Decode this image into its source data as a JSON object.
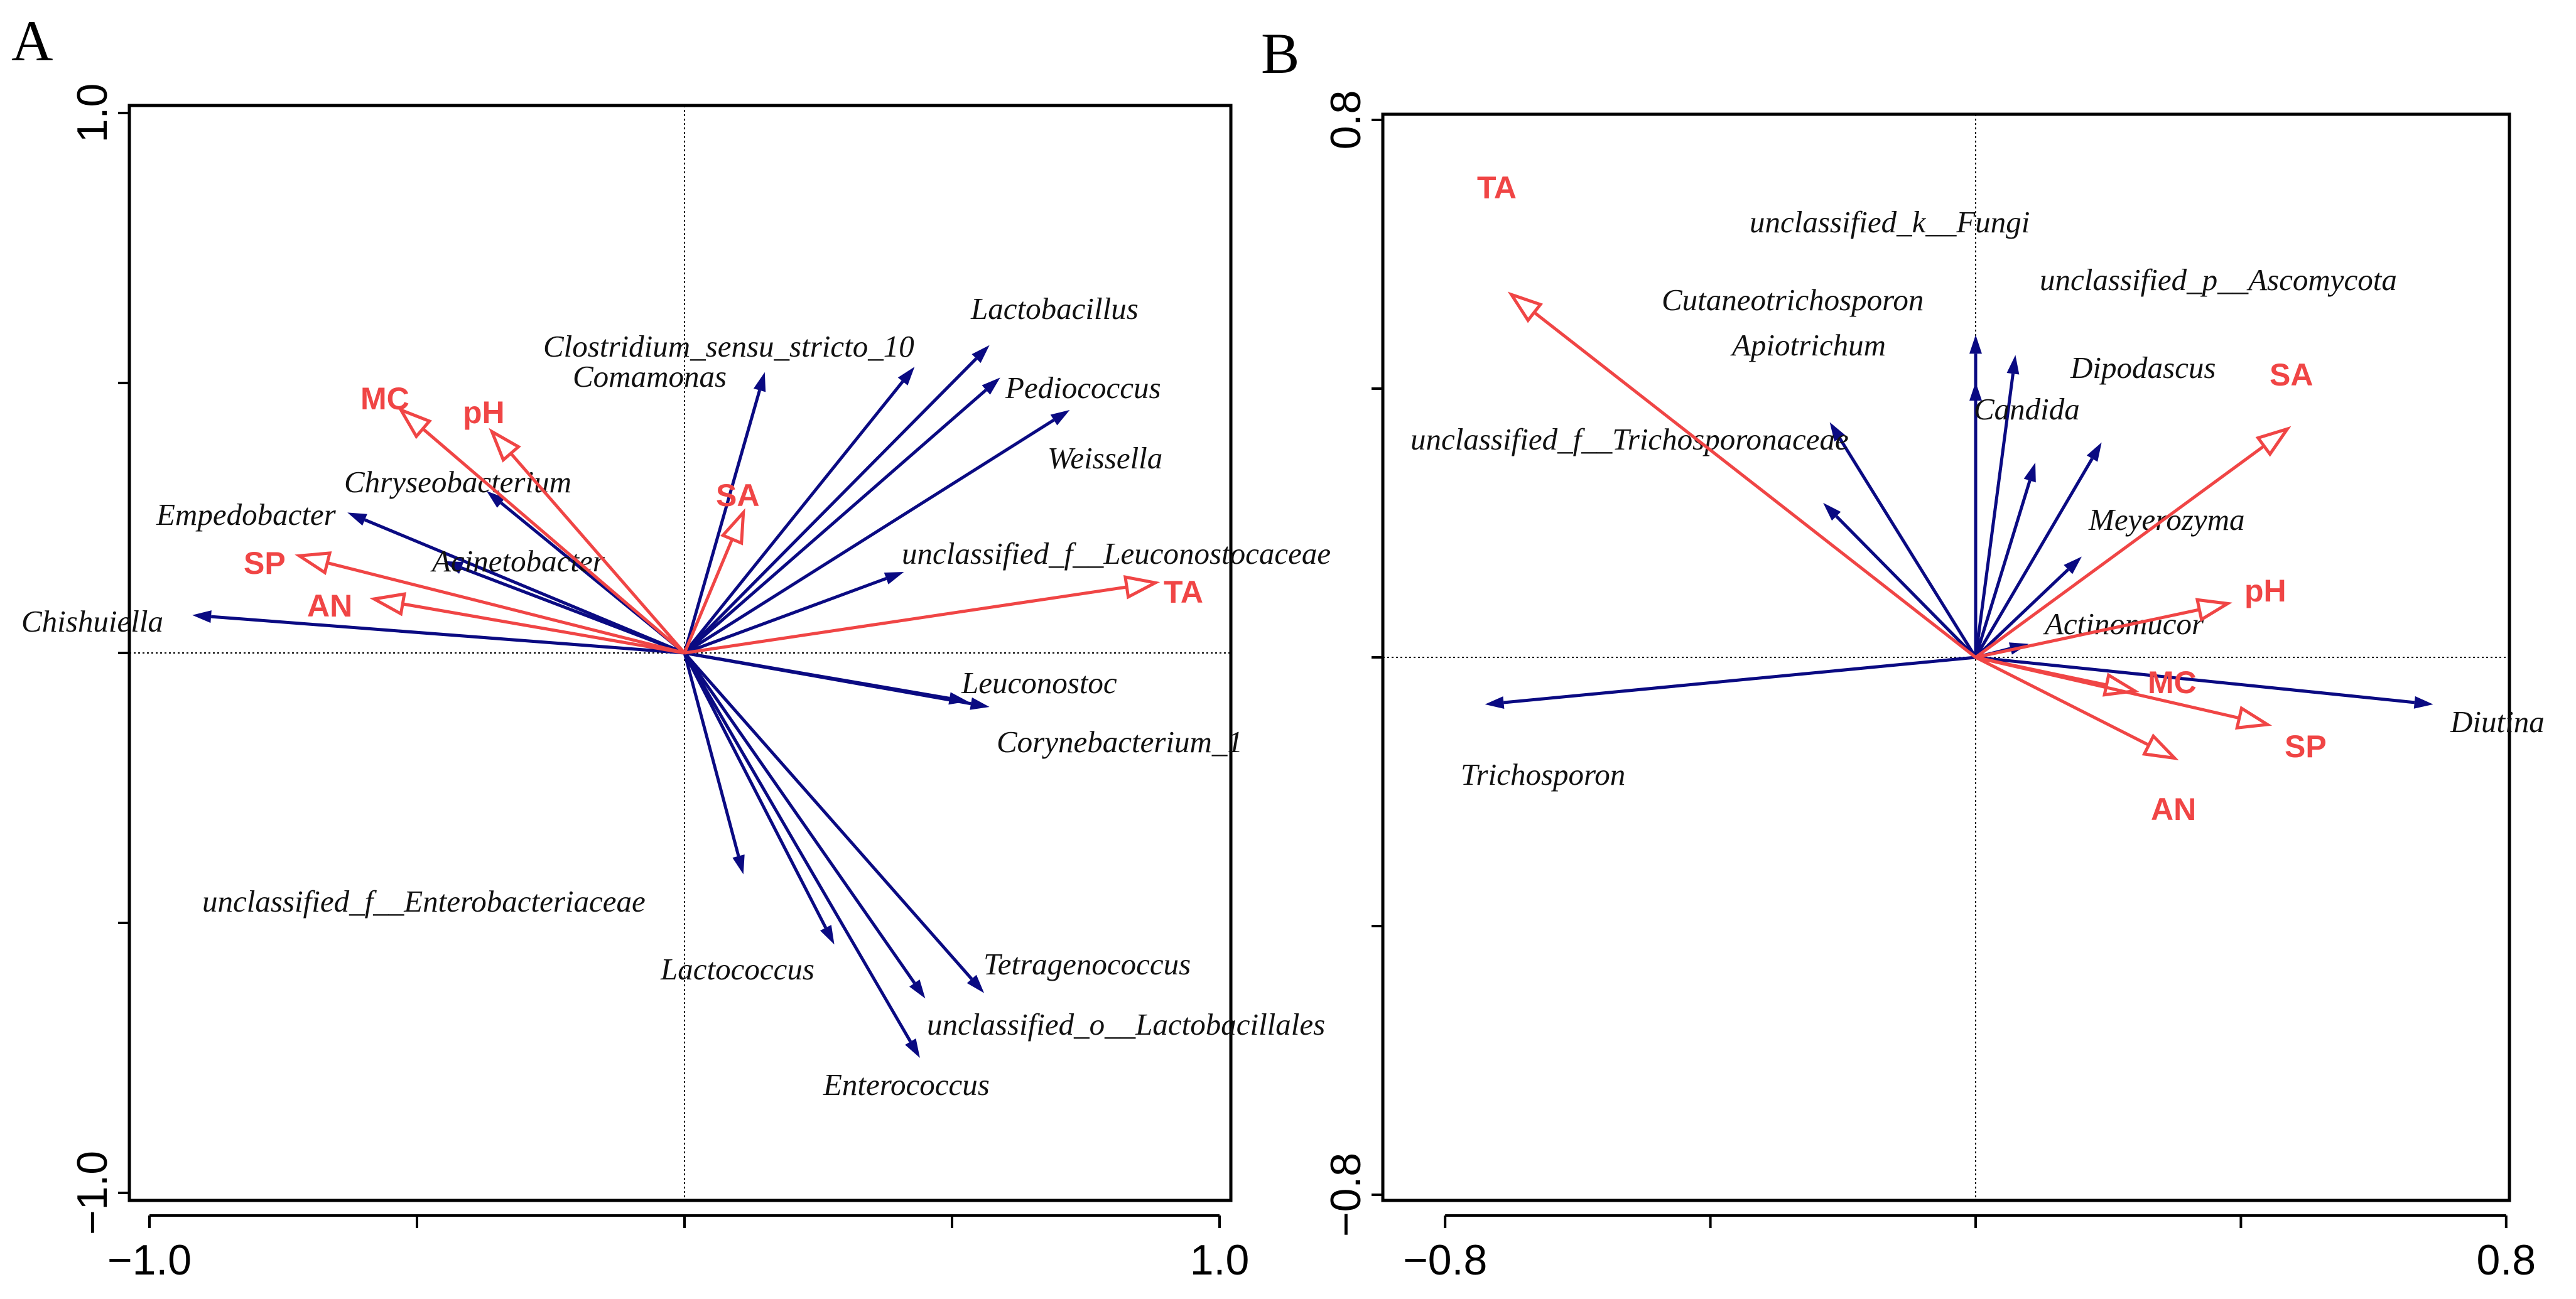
{
  "figure": {
    "panel_letters": [
      "A",
      "B"
    ]
  },
  "colors": {
    "species": "#0a0a82",
    "environment": "#f04545",
    "axis": "#000000"
  },
  "chart_data": [
    {
      "type": "scatter",
      "subtype": "ordination-biplot",
      "panel": "A",
      "title": "",
      "xlim": [
        -1.0,
        1.0
      ],
      "ylim": [
        -1.0,
        1.0
      ],
      "x_tick_values": [
        -1.0,
        -0.5,
        0,
        0.5,
        1.0
      ],
      "y_tick_values": [
        -1.0,
        -0.5,
        0,
        0.5,
        1.0
      ],
      "x_tick_labels": [
        {
          "value": -1.0,
          "text": "−1.0"
        },
        {
          "value": 1.0,
          "text": "1.0"
        }
      ],
      "y_tick_labels": [
        {
          "value": -1.0,
          "text": "−1.0"
        },
        {
          "value": 1.0,
          "text": "1.0"
        }
      ],
      "species_series": [
        {
          "name": "Lactobacillus",
          "x": 0.57,
          "y": 0.57
        },
        {
          "name": "Clostridium_sensu_stricto_10",
          "x": 0.43,
          "y": 0.53
        },
        {
          "name": "Comamonas",
          "x": 0.15,
          "y": 0.52
        },
        {
          "name": "Pediococcus",
          "x": 0.59,
          "y": 0.51
        },
        {
          "name": "Weissella",
          "x": 0.72,
          "y": 0.45
        },
        {
          "name": "unclassified_f__Leuconostocaceae",
          "x": 0.41,
          "y": 0.15
        },
        {
          "name": "Leuconostoc",
          "x": 0.53,
          "y": -0.09
        },
        {
          "name": "Corynebacterium_1",
          "x": 0.57,
          "y": -0.1
        },
        {
          "name": "unclassified_f__Enterobacteriaceae",
          "x": 0.11,
          "y": -0.41
        },
        {
          "name": "Lactococcus",
          "x": 0.28,
          "y": -0.54
        },
        {
          "name": "Tetragenococcus",
          "x": 0.56,
          "y": -0.63
        },
        {
          "name": "unclassified_o__Lactobacillales",
          "x": 0.45,
          "y": -0.64
        },
        {
          "name": "Enterococcus",
          "x": 0.44,
          "y": -0.75
        },
        {
          "name": "Chryseobacterium",
          "x": -0.37,
          "y": 0.3
        },
        {
          "name": "Empedobacter",
          "x": -0.63,
          "y": 0.26
        },
        {
          "name": "Acinetobacter",
          "x": -0.45,
          "y": 0.17
        },
        {
          "name": "Chishuiella",
          "x": -0.92,
          "y": 0.07
        }
      ],
      "environment_series": [
        {
          "name": "MC",
          "x": -0.53,
          "y": 0.45
        },
        {
          "name": "pH",
          "x": -0.36,
          "y": 0.41
        },
        {
          "name": "SA",
          "x": 0.11,
          "y": 0.26
        },
        {
          "name": "SP",
          "x": -0.72,
          "y": 0.18
        },
        {
          "name": "AN",
          "x": -0.58,
          "y": 0.1
        },
        {
          "name": "TA",
          "x": 0.88,
          "y": 0.13
        }
      ]
    },
    {
      "type": "scatter",
      "subtype": "ordination-biplot",
      "panel": "B",
      "title": "",
      "xlim": [
        -0.8,
        0.8
      ],
      "ylim": [
        -0.8,
        0.8
      ],
      "x_tick_values": [
        -0.8,
        -0.4,
        0,
        0.4,
        0.8
      ],
      "y_tick_values": [
        -0.8,
        -0.4,
        0,
        0.4,
        0.8
      ],
      "x_tick_labels": [
        {
          "value": -0.8,
          "text": "−0.8"
        },
        {
          "value": 0.8,
          "text": "0.8"
        }
      ],
      "y_tick_labels": [
        {
          "value": -0.8,
          "text": "−0.8"
        },
        {
          "value": 0.8,
          "text": "0.8"
        }
      ],
      "species_series": [
        {
          "name": "unclassified_k__Fungi",
          "x": 0.0,
          "y": 0.48
        },
        {
          "name": "Cutaneotrichosporon",
          "x": 0.0,
          "y": 0.41
        },
        {
          "name": "unclassified_p__Ascomycota",
          "x": 0.06,
          "y": 0.45
        },
        {
          "name": "Apiotrichum",
          "x": -0.22,
          "y": 0.35
        },
        {
          "name": "Dipodascus",
          "x": 0.19,
          "y": 0.32
        },
        {
          "name": "Candida",
          "x": 0.09,
          "y": 0.29
        },
        {
          "name": "unclassified_f__Trichosporonaceae",
          "x": -0.23,
          "y": 0.23
        },
        {
          "name": "Meyerozyma",
          "x": 0.16,
          "y": 0.15
        },
        {
          "name": "Actinomucor",
          "x": 0.08,
          "y": 0.02
        },
        {
          "name": "Diutina",
          "x": 0.69,
          "y": -0.07
        },
        {
          "name": "Trichosporon",
          "x": -0.74,
          "y": -0.07
        }
      ],
      "environment_series": [
        {
          "name": "TA",
          "x": -0.7,
          "y": 0.54
        },
        {
          "name": "SA",
          "x": 0.47,
          "y": 0.34
        },
        {
          "name": "pH",
          "x": 0.38,
          "y": 0.08
        },
        {
          "name": "MC",
          "x": 0.24,
          "y": -0.05
        },
        {
          "name": "SP",
          "x": 0.44,
          "y": -0.1
        },
        {
          "name": "AN",
          "x": 0.3,
          "y": -0.15
        }
      ]
    }
  ]
}
